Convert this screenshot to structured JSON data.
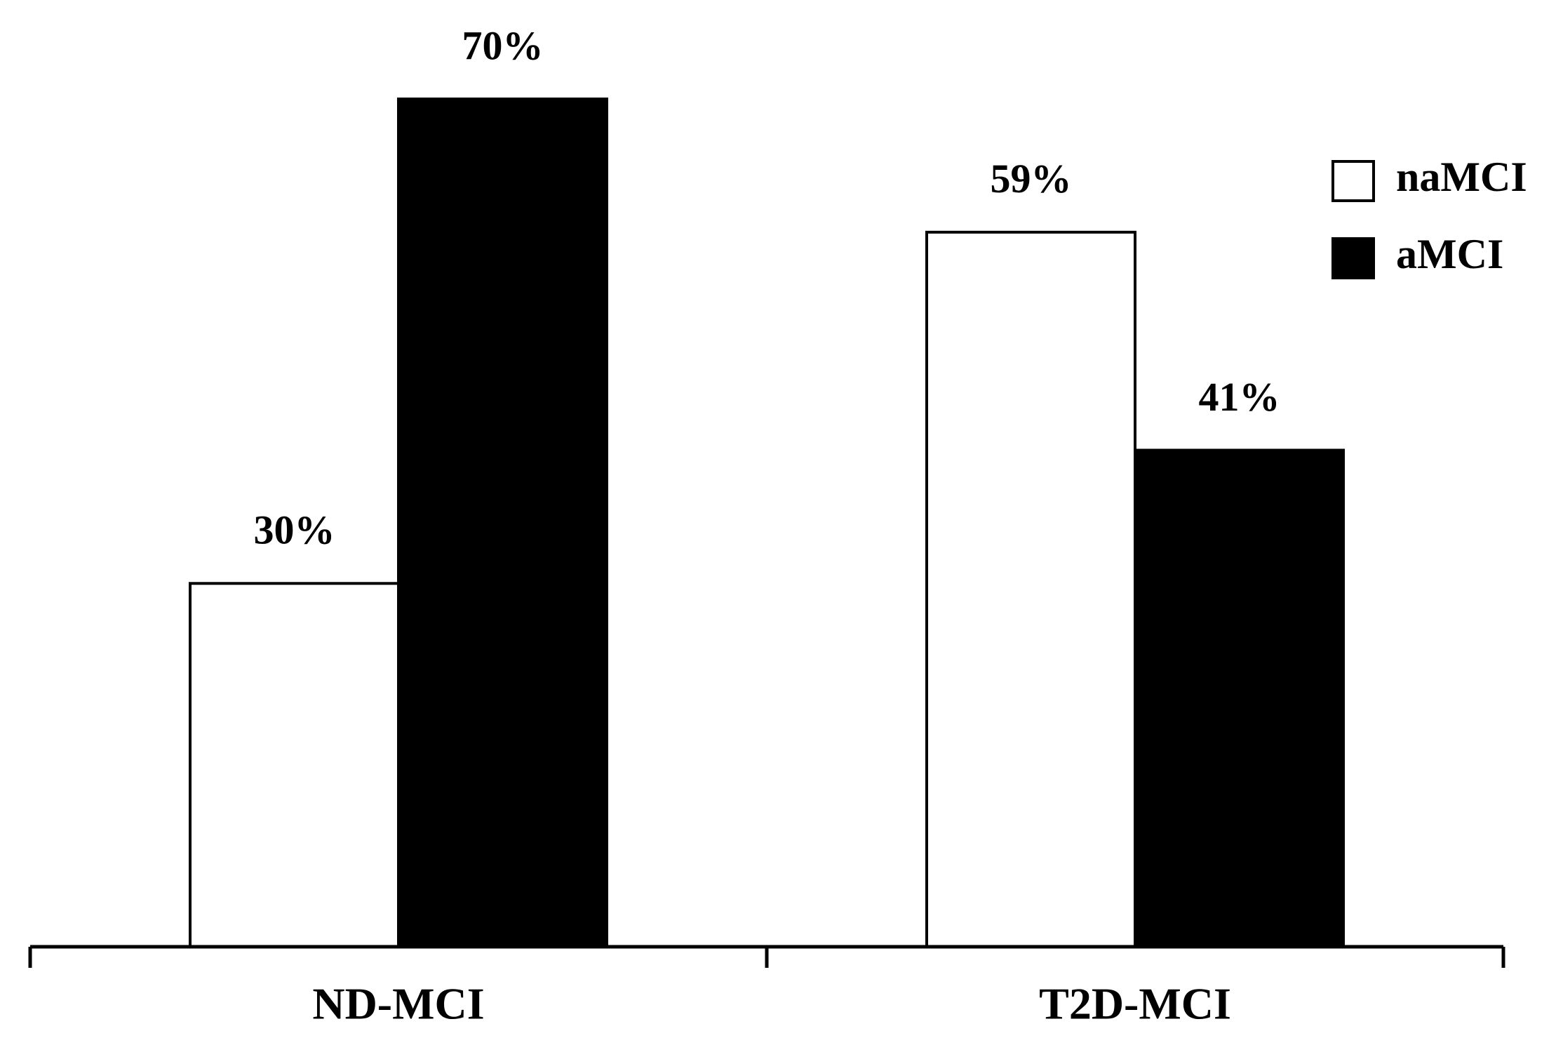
{
  "chart_data": {
    "type": "bar",
    "categories": [
      "ND-MCI",
      "T2D-MCI"
    ],
    "series": [
      {
        "name": "naMCI",
        "color": "#ffffff",
        "values": [
          30,
          59
        ],
        "value_labels": [
          "30%",
          "59%"
        ]
      },
      {
        "name": "aMCI",
        "color": "#000000",
        "values": [
          70,
          41
        ],
        "value_labels": [
          "70%",
          "41%"
        ]
      }
    ],
    "legend": "upper right"
  }
}
